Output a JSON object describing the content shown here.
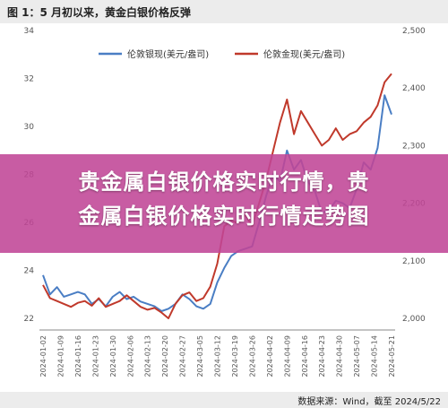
{
  "header": {
    "title": "图 1：5 月初以来，黄金白银价格反弹"
  },
  "banner": {
    "line1": "贵金属白银价格实时行情，贵",
    "line2": "金属白银价格实时行情走势图"
  },
  "footer": {
    "source": "数据来源：Wind，截至 2024/5/22"
  },
  "colors": {
    "silver": "#4a7ec4",
    "gold": "#c0392b",
    "banner": "#c04696"
  },
  "chart_data": {
    "type": "line",
    "title": "图 1：5 月初以来，黄金白银价格反弹",
    "x_ticks": [
      "2024-01-02",
      "2024-01-09",
      "2024-01-16",
      "2024-01-23",
      "2024-01-30",
      "2024-02-06",
      "2024-02-13",
      "2024-02-20",
      "2024-02-27",
      "2024-03-05",
      "2024-03-12",
      "2024-03-19",
      "2024-03-26",
      "2024-04-02",
      "2024-04-09",
      "2024-04-16",
      "2024-04-23",
      "2024-04-30",
      "2024-05-07",
      "2024-05-14",
      "2024-05-21"
    ],
    "y_left": {
      "ticks": [
        22,
        24,
        26,
        28,
        30,
        32,
        34
      ],
      "range": [
        22,
        34
      ]
    },
    "y_right": {
      "ticks": [
        "2,000",
        "2,100",
        "2,200",
        "2,300",
        "2,400",
        "2,500"
      ],
      "range": [
        2000,
        2500
      ]
    },
    "legend": [
      "伦敦银现(美元/盎司)",
      "伦敦金现(美元/盎司)"
    ],
    "legend_position": "top",
    "series": [
      {
        "name": "伦敦银现(美元/盎司)",
        "axis": "left",
        "x_index": [
          0,
          0.4,
          0.8,
          1.2,
          1.6,
          2,
          2.4,
          2.8,
          3.2,
          3.6,
          4,
          4.4,
          4.8,
          5.2,
          5.6,
          6,
          6.4,
          6.8,
          7.2,
          7.6,
          8,
          8.4,
          8.8,
          9.2,
          9.6,
          10,
          10.4,
          10.8,
          11.2,
          11.6,
          12,
          12.4,
          12.8,
          13.2,
          13.6,
          14,
          14.4,
          14.8,
          15.2,
          15.6,
          16,
          16.4,
          16.8,
          17.2,
          17.6,
          18,
          18.4,
          18.8,
          19.2,
          19.6,
          20
        ],
        "values": [
          23.8,
          23.0,
          23.3,
          22.9,
          23.0,
          23.1,
          23.0,
          22.6,
          22.8,
          22.5,
          22.9,
          23.1,
          22.8,
          22.9,
          22.7,
          22.6,
          22.5,
          22.3,
          22.4,
          22.6,
          23.0,
          22.8,
          22.5,
          22.4,
          22.6,
          23.5,
          24.1,
          24.6,
          24.8,
          24.9,
          25.0,
          26.0,
          27.1,
          28.0,
          27.7,
          29.0,
          28.2,
          28.6,
          27.7,
          27.3,
          26.4,
          26.5,
          26.9,
          26.8,
          26.6,
          27.4,
          28.5,
          28.2,
          29.1,
          31.3,
          30.5
        ]
      },
      {
        "name": "伦敦金现(美元/盎司)",
        "axis": "right",
        "x_index": [
          0,
          0.4,
          0.8,
          1.2,
          1.6,
          2,
          2.4,
          2.8,
          3.2,
          3.6,
          4,
          4.4,
          4.8,
          5.2,
          5.6,
          6,
          6.4,
          6.8,
          7.2,
          7.6,
          8,
          8.4,
          8.8,
          9.2,
          9.6,
          10,
          10.4,
          10.8,
          11.2,
          11.6,
          12,
          12.4,
          12.8,
          13.2,
          13.6,
          14,
          14.4,
          14.8,
          15.2,
          15.6,
          16,
          16.4,
          16.8,
          17.2,
          17.6,
          18,
          18.4,
          18.8,
          19.2,
          19.6,
          20
        ],
        "values": [
          2058,
          2035,
          2030,
          2025,
          2020,
          2027,
          2030,
          2022,
          2035,
          2020,
          2025,
          2030,
          2040,
          2030,
          2020,
          2015,
          2018,
          2010,
          2000,
          2025,
          2040,
          2045,
          2030,
          2035,
          2055,
          2095,
          2160,
          2170,
          2165,
          2180,
          2160,
          2200,
          2240,
          2290,
          2340,
          2380,
          2320,
          2360,
          2340,
          2320,
          2300,
          2310,
          2330,
          2310,
          2320,
          2325,
          2340,
          2350,
          2370,
          2410,
          2425
        ]
      }
    ]
  }
}
